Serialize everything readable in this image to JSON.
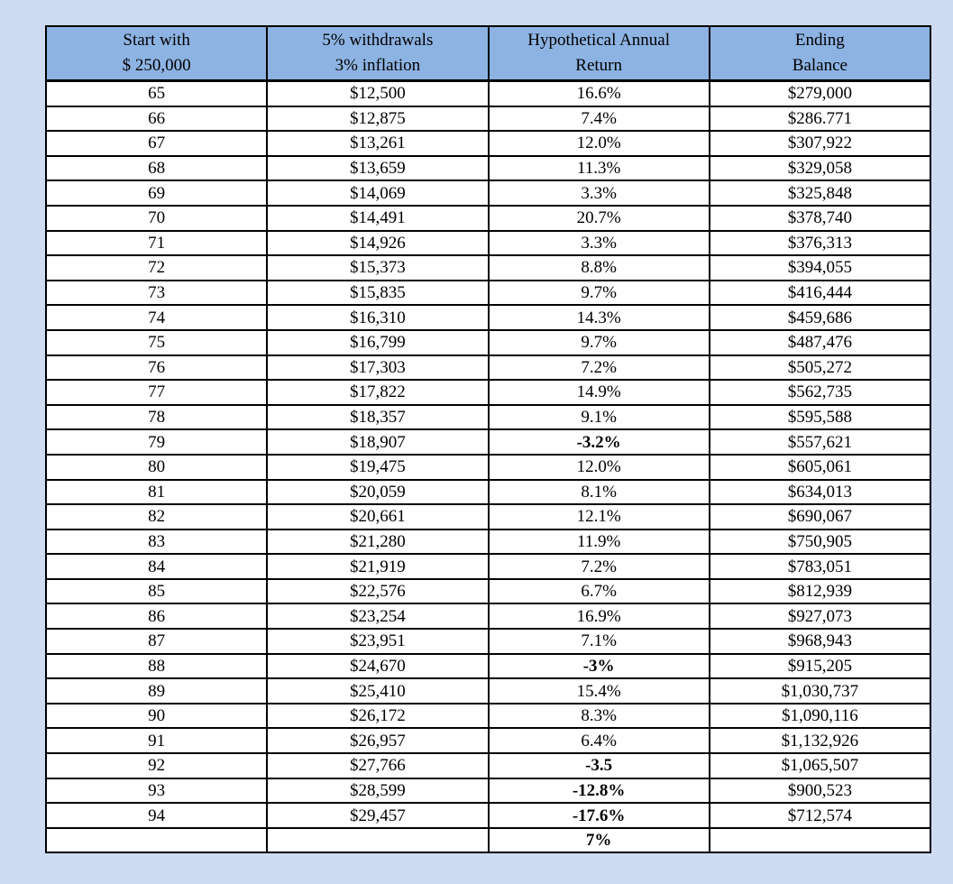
{
  "page": {
    "background": "#cedbf2"
  },
  "table": {
    "header_bg": "#8db3e2",
    "negative_color": "#ff0000",
    "summary_color": "#1f4e79",
    "columns": [
      {
        "line1": "Start with",
        "line2": "$ 250,000"
      },
      {
        "line1": "5% withdrawals",
        "line2": "3% inflation"
      },
      {
        "line1": "Hypothetical Annual",
        "line2": "Return"
      },
      {
        "line1": "Ending",
        "line2": "Balance"
      }
    ],
    "rows": [
      {
        "age": "65",
        "withdrawal": "$12,500",
        "return": "16.6%",
        "style": "",
        "balance": "$279,000"
      },
      {
        "age": "66",
        "withdrawal": "$12,875",
        "return": "7.4%",
        "style": "",
        "balance": "$286.771"
      },
      {
        "age": "67",
        "withdrawal": "$13,261",
        "return": "12.0%",
        "style": "",
        "balance": "$307,922"
      },
      {
        "age": "68",
        "withdrawal": "$13,659",
        "return": "11.3%",
        "style": "",
        "balance": "$329,058"
      },
      {
        "age": "69",
        "withdrawal": "$14,069",
        "return": "3.3%",
        "style": "",
        "balance": "$325,848"
      },
      {
        "age": "70",
        "withdrawal": "$14,491",
        "return": "20.7%",
        "style": "",
        "balance": "$378,740"
      },
      {
        "age": "71",
        "withdrawal": "$14,926",
        "return": "3.3%",
        "style": "",
        "balance": "$376,313"
      },
      {
        "age": "72",
        "withdrawal": "$15,373",
        "return": "8.8%",
        "style": "",
        "balance": "$394,055"
      },
      {
        "age": "73",
        "withdrawal": "$15,835",
        "return": "9.7%",
        "style": "",
        "balance": "$416,444"
      },
      {
        "age": "74",
        "withdrawal": "$16,310",
        "return": "14.3%",
        "style": "",
        "balance": "$459,686"
      },
      {
        "age": "75",
        "withdrawal": "$16,799",
        "return": "9.7%",
        "style": "",
        "balance": "$487,476"
      },
      {
        "age": "76",
        "withdrawal": "$17,303",
        "return": "7.2%",
        "style": "",
        "balance": "$505,272"
      },
      {
        "age": "77",
        "withdrawal": "$17,822",
        "return": "14.9%",
        "style": "",
        "balance": "$562,735"
      },
      {
        "age": "78",
        "withdrawal": "$18,357",
        "return": "9.1%",
        "style": "",
        "balance": "$595,588"
      },
      {
        "age": "79",
        "withdrawal": "$18,907",
        "return": "-3.2%",
        "style": "negative",
        "balance": "$557,621"
      },
      {
        "age": "80",
        "withdrawal": "$19,475",
        "return": "12.0%",
        "style": "",
        "balance": "$605,061"
      },
      {
        "age": "81",
        "withdrawal": "$20,059",
        "return": "8.1%",
        "style": "",
        "balance": "$634,013"
      },
      {
        "age": "82",
        "withdrawal": "$20,661",
        "return": "12.1%",
        "style": "",
        "balance": "$690,067"
      },
      {
        "age": "83",
        "withdrawal": "$21,280",
        "return": "11.9%",
        "style": "",
        "balance": "$750,905"
      },
      {
        "age": "84",
        "withdrawal": "$21,919",
        "return": "7.2%",
        "style": "",
        "balance": "$783,051"
      },
      {
        "age": "85",
        "withdrawal": "$22,576",
        "return": "6.7%",
        "style": "",
        "balance": "$812,939"
      },
      {
        "age": "86",
        "withdrawal": "$23,254",
        "return": "16.9%",
        "style": "",
        "balance": "$927,073"
      },
      {
        "age": "87",
        "withdrawal": "$23,951",
        "return": "7.1%",
        "style": "",
        "balance": "$968,943"
      },
      {
        "age": "88",
        "withdrawal": "$24,670",
        "return": "-3%",
        "style": "negative",
        "balance": "$915,205"
      },
      {
        "age": "89",
        "withdrawal": "$25,410",
        "return": "15.4%",
        "style": "",
        "balance": "$1,030,737"
      },
      {
        "age": "90",
        "withdrawal": "$26,172",
        "return": "8.3%",
        "style": "",
        "balance": "$1,090,116"
      },
      {
        "age": "91",
        "withdrawal": "$26,957",
        "return": "6.4%",
        "style": "",
        "balance": "$1,132,926"
      },
      {
        "age": "92",
        "withdrawal": "$27,766",
        "return": "-3.5",
        "style": "negative",
        "balance": "$1,065,507"
      },
      {
        "age": "93",
        "withdrawal": "$28,599",
        "return": "-12.8%",
        "style": "negative",
        "balance": "$900,523"
      },
      {
        "age": "94",
        "withdrawal": "$29,457",
        "return": "-17.6%",
        "style": "negative",
        "balance": "$712,574"
      },
      {
        "age": "",
        "withdrawal": "",
        "return": "7%",
        "style": "summary",
        "balance": ""
      }
    ]
  }
}
